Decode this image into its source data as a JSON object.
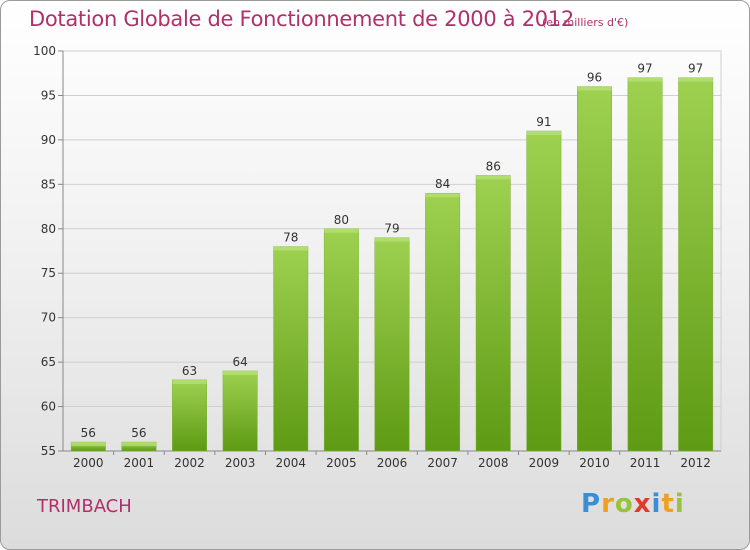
{
  "chart_data": {
    "type": "bar",
    "title": "Dotation Globale de Fonctionnement de 2000 à 2012",
    "subtitle": "(en milliers d'€)",
    "categories": [
      "2000",
      "2001",
      "2002",
      "2003",
      "2004",
      "2005",
      "2006",
      "2007",
      "2008",
      "2009",
      "2010",
      "2011",
      "2012"
    ],
    "values": [
      56,
      56,
      63,
      64,
      78,
      80,
      79,
      84,
      86,
      91,
      96,
      97,
      97
    ],
    "ylim": [
      55,
      100
    ],
    "yticks": [
      55,
      60,
      65,
      70,
      75,
      80,
      85,
      90,
      95,
      100
    ],
    "grid": true,
    "bar_color_top": "#9ed150",
    "bar_color_bottom": "#5e9a14"
  },
  "commune": "TRIMBACH",
  "logo": {
    "letters": [
      "P",
      "r",
      "o",
      "x",
      "i",
      "t",
      "i"
    ],
    "colors": [
      "#3a8ed6",
      "#f0a020",
      "#9ac23a",
      "#e03a2a",
      "#3a8ed6",
      "#f0a020",
      "#9ac23a"
    ]
  }
}
